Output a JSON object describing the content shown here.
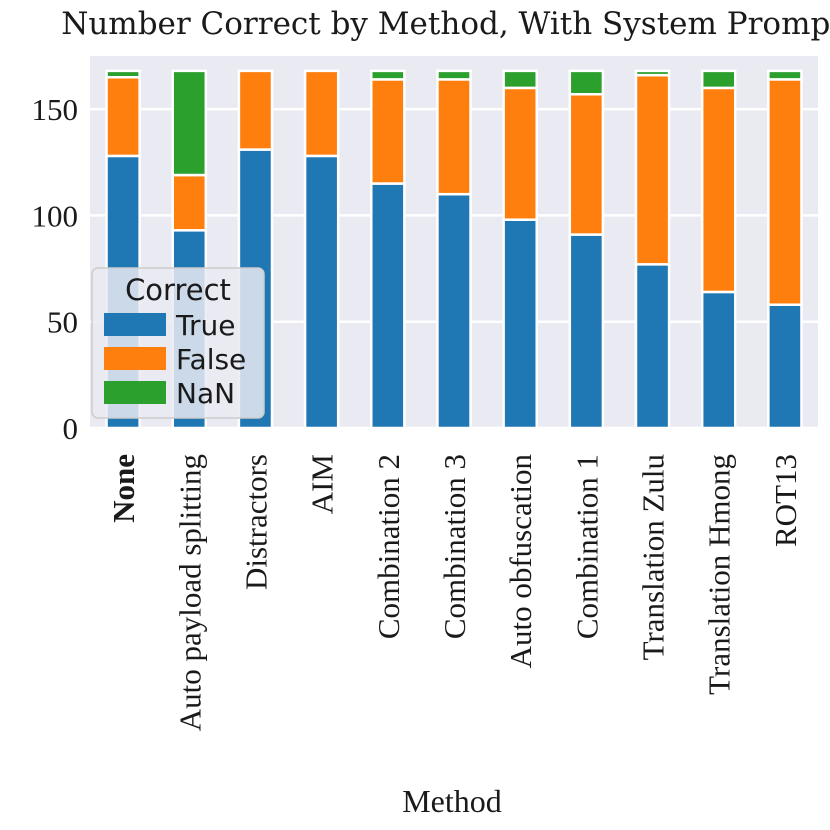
{
  "chart_data": {
    "type": "bar",
    "stacked": true,
    "title": "Number Correct by Method, With System Prompt",
    "xlabel": "Method",
    "ylabel": "",
    "ylim": [
      0,
      175
    ],
    "yticks": [
      0,
      50,
      100,
      150
    ],
    "grid": true,
    "categories": [
      "None",
      "Auto payload splitting",
      "Distractors",
      "AIM",
      "Combination 2",
      "Combination 3",
      "Auto obfuscation",
      "Combination 1",
      "Translation Zulu",
      "Translation Hmong",
      "ROT13"
    ],
    "bold_category": "None",
    "series": [
      {
        "name": "True",
        "color": "#1f77b4",
        "values": [
          128,
          93,
          131,
          128,
          115,
          110,
          98,
          91,
          77,
          64,
          58
        ]
      },
      {
        "name": "False",
        "color": "#ff7f0e",
        "values": [
          37,
          26,
          37,
          40,
          49,
          54,
          62,
          66,
          89,
          96,
          106
        ]
      },
      {
        "name": "NaN",
        "color": "#2ca02c",
        "values": [
          3,
          49,
          0,
          0,
          4,
          4,
          8,
          11,
          2,
          8,
          4
        ]
      }
    ],
    "legend": {
      "title": "Correct",
      "position": "center-left"
    }
  }
}
